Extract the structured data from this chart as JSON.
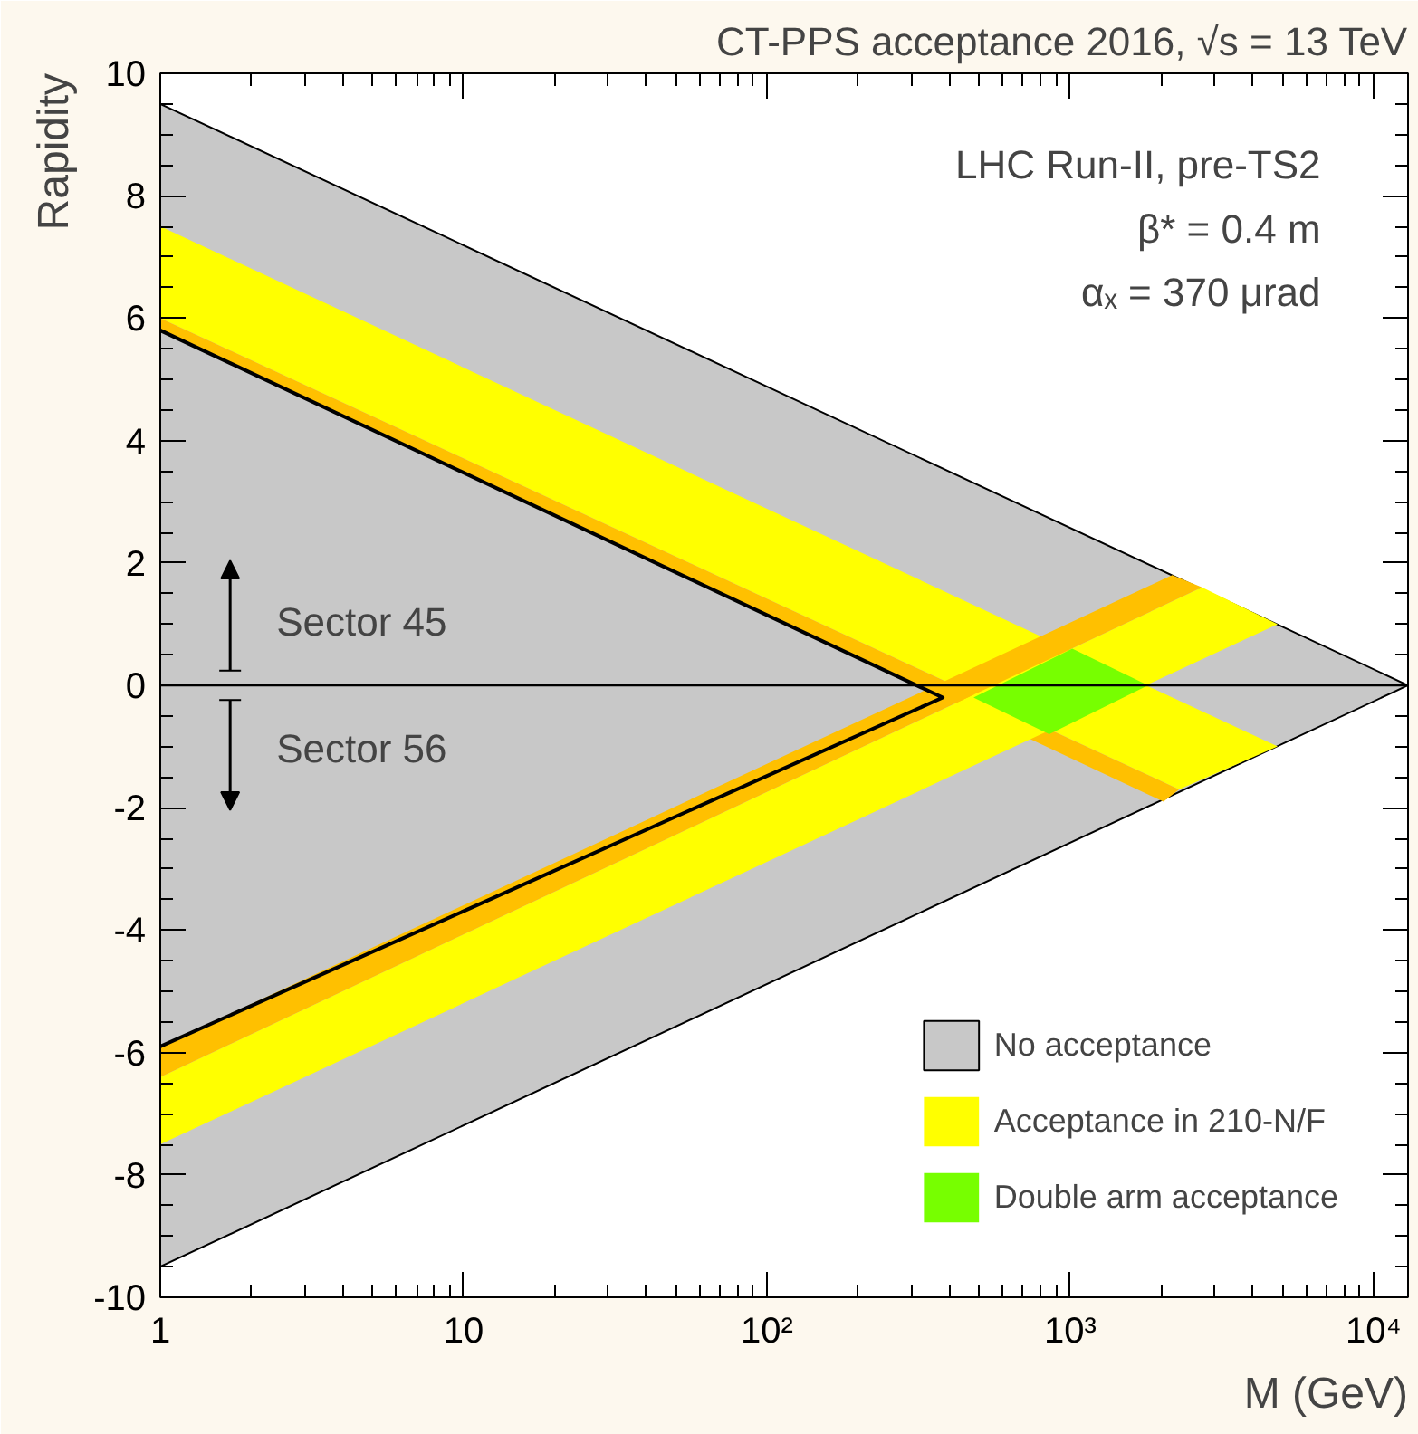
{
  "chart_data": {
    "type": "area",
    "title": "CT-PPS acceptance 2016, √s = 13 TeV",
    "xlabel": "M (GeV)",
    "ylabel": "Rapidity",
    "annotations": [
      "LHC Run-II, pre-TS2",
      "β* = 0.4 m",
      "αₓ = 370 μrad",
      "Sector 45",
      "Sector 56"
    ],
    "log": "x",
    "xlim": [
      1,
      13000
    ],
    "ylim": [
      -10,
      10
    ],
    "xticks": [
      1,
      10,
      {
        "value": 100,
        "label": "10²"
      },
      {
        "value": 1000,
        "label": "10³"
      },
      {
        "value": 10000,
        "label": "10⁴"
      }
    ],
    "yticks": [
      -10,
      -8,
      -6,
      -4,
      -2,
      0,
      2,
      4,
      6,
      8,
      10
    ],
    "grid": false,
    "legend": "bottom right",
    "ref_lines": [
      {
        "axis": "y",
        "value": 0,
        "color": "#000000"
      }
    ],
    "series": [
      {
        "name": "No acceptance",
        "color": "#c8c8c8",
        "x": [
          1,
          13000,
          1
        ],
        "values": [
          9.5,
          0,
          -9.5
        ]
      },
      {
        "name": "Acceptance in 210-N/F",
        "color": "#ffff00",
        "x": [
          1,
          4830,
          2285,
          1
        ],
        "values": [
          7.5,
          -1.0,
          -1.7,
          6.0
        ]
      },
      {
        "color": "#ffc000",
        "x": [
          1,
          2285,
          2030,
          1
        ],
        "values": [
          6.0,
          -1.7,
          -1.9,
          5.8
        ]
      },
      {
        "color": "#ffff00",
        "x": [
          1,
          2720,
          4830,
          1
        ],
        "values": [
          -6.4,
          1.6,
          1.0,
          -7.5
        ]
      },
      {
        "color": "#ffc000",
        "x": [
          1,
          2170,
          2720,
          1
        ],
        "values": [
          -5.9,
          1.8,
          1.6,
          -6.4
        ]
      },
      {
        "name": "Double arm acceptance",
        "color": "#77ff00",
        "x": [
          480,
          1016,
          1806,
          853
        ],
        "values": [
          -0.2,
          0.6,
          0,
          -0.8
        ]
      },
      {
        "type": "line",
        "color": "#000000",
        "x": [
          1,
          380,
          1
        ],
        "values": [
          5.8,
          -0.2,
          -5.9
        ]
      }
    ]
  }
}
